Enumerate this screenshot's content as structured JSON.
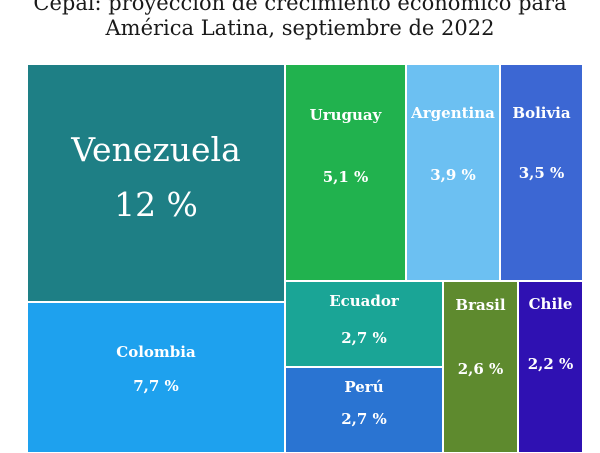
{
  "title": {
    "line1": "Cepal: proyección de crecimiento económico para",
    "line2": "América Latina, septiembre de 2022"
  },
  "chart_data": {
    "type": "treemap",
    "title": "Cepal: proyección de crecimiento económico para América Latina, septiembre de 2022",
    "unit": "%",
    "items": [
      {
        "name": "Venezuela",
        "value": 12,
        "label": "12 %",
        "color": "#1e7f85"
      },
      {
        "name": "Colombia",
        "value": 7.7,
        "label": "7,7 %",
        "color": "#1ea1ee"
      },
      {
        "name": "Uruguay",
        "value": 5.1,
        "label": "5,1 %",
        "color": "#21b24e"
      },
      {
        "name": "Argentina",
        "value": 3.9,
        "label": "3,9 %",
        "color": "#6cc0f2"
      },
      {
        "name": "Bolivia",
        "value": 3.5,
        "label": "3,5 %",
        "color": "#3c67d3"
      },
      {
        "name": "Ecuador",
        "value": 2.7,
        "label": "2,7 %",
        "color": "#1aa596"
      },
      {
        "name": "Perú",
        "value": 2.7,
        "label": "2,7 %",
        "color": "#2a74d2"
      },
      {
        "name": "Brasil",
        "value": 2.6,
        "label": "2,6  %",
        "color": "#5e8a2e"
      },
      {
        "name": "Chile",
        "value": 2.2,
        "label": "2,2 %",
        "color": "#2f11b2"
      }
    ]
  }
}
